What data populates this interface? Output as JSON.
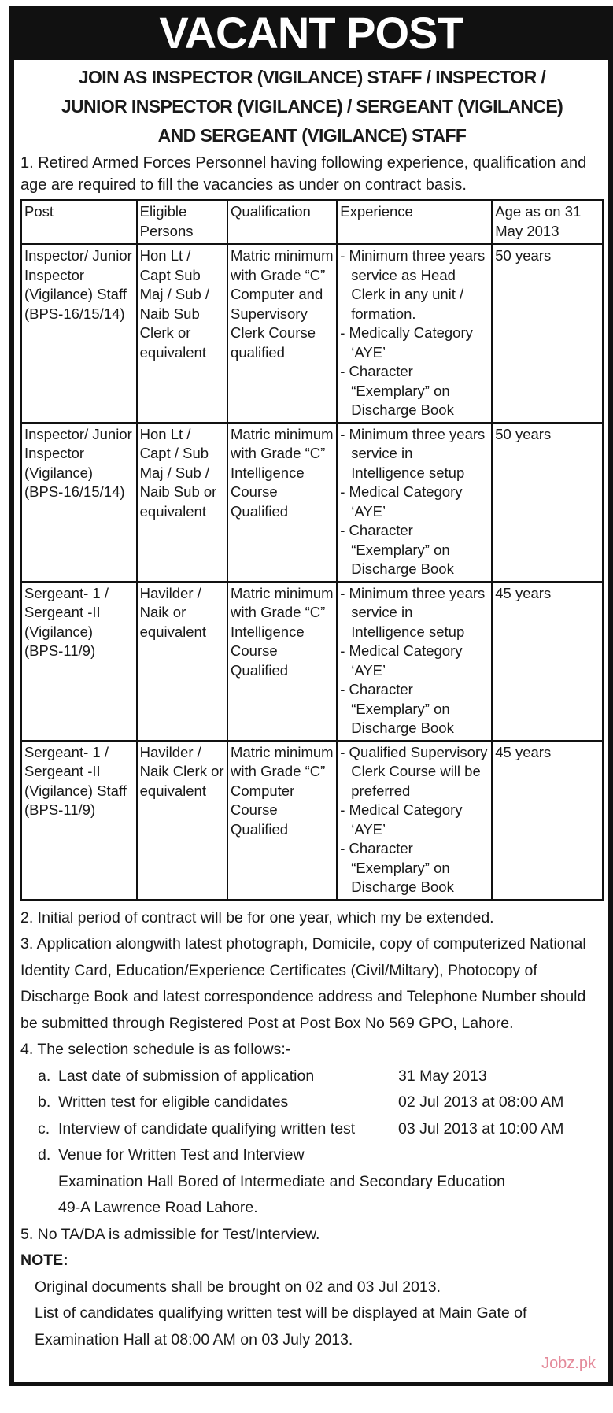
{
  "banner": "VACANT POST",
  "titles": [
    "JOIN AS INSPECTOR (VIGILANCE) STAFF / INSPECTOR /",
    "JUNIOR INSPECTOR (VIGILANCE) / SERGEANT (VIGILANCE)",
    "AND SERGEANT (VIGILANCE) STAFF"
  ],
  "para1": "1. Retired Armed Forces Personnel having following experience, qualification and age are required to fill the vacancies as under on contract basis.",
  "table": {
    "headers": [
      "Post",
      "Eligible Persons",
      "Qualification",
      "Experience",
      "Age as on 31 May 2013"
    ],
    "rows": [
      {
        "post": "Inspector/ Junior Inspector (Vigilance) Staff (BPS-16/15/14)",
        "eligible": "Hon Lt / Capt Sub Maj / Sub / Naib Sub Clerk or equivalent",
        "qualification": "Matric minimum with Grade “C” Computer and Supervisory Clerk Course qualified",
        "experience": [
          "- Minimum three years service as Head Clerk in any unit / formation.",
          "- Medically Category ‘AYE’",
          "- Character “Exemplary” on Discharge Book"
        ],
        "age": "50 years"
      },
      {
        "post": "Inspector/ Junior Inspector (Vigilance) (BPS-16/15/14)",
        "eligible": "Hon Lt / Capt / Sub Maj / Sub / Naib Sub or equivalent",
        "qualification": "Matric minimum with Grade “C” Intelligence Course Qualified",
        "experience": [
          "- Minimum three years service in Intelligence setup",
          "- Medical Category ‘AYE’",
          "- Character “Exemplary” on Discharge Book"
        ],
        "age": "50 years"
      },
      {
        "post": "Sergeant- 1 / Sergeant -II (Vigilance) (BPS-11/9)",
        "eligible": "Havilder / Naik or equivalent",
        "qualification": "Matric minimum with Grade “C” Intelligence Course Qualified",
        "experience": [
          "- Minimum three years service in Intelligence setup",
          "- Medical Category ‘AYE’",
          "- Character “Exemplary” on Discharge Book"
        ],
        "age": "45 years"
      },
      {
        "post": "Sergeant- 1 / Sergeant -II (Vigilance) Staff (BPS-11/9)",
        "eligible": "Havilder / Naik Clerk or equivalent",
        "qualification": "Matric minimum with Grade “C” Computer Course Qualified",
        "experience": [
          "- Qualified Supervisory Clerk Course will be preferred",
          "- Medical Category ‘AYE’",
          "- Character “Exemplary” on Discharge Book"
        ],
        "age": "45 years"
      }
    ]
  },
  "para2": "2. Initial period of contract will be for one year, which my be extended.",
  "para3": "3. Application alongwith latest photograph, Domicile, copy of computerized National Identity Card, Education/Experience Certificates (Civil/Miltary), Photocopy of Discharge Book and latest correspondence address and Telephone Number should be submitted through Registered Post at Post Box No 569 GPO, Lahore.",
  "para4": "4. The selection schedule is as follows:-",
  "schedule": [
    {
      "letter": "a.",
      "text": "Last date of submission of application",
      "date": "31 May 2013"
    },
    {
      "letter": "b.",
      "text": "Written test for eligible candidates",
      "date": "02 Jul 2013 at 08:00 AM"
    },
    {
      "letter": "c.",
      "text": "Interview of candidate qualifying written test",
      "date": "03 Jul 2013 at 10:00 AM"
    },
    {
      "letter": "d.",
      "text": "Venue for Written Test and Interview",
      "date": ""
    }
  ],
  "venue": [
    "Examination Hall Bored of Intermediate and Secondary Education",
    "49-A Lawrence Road Lahore."
  ],
  "para5": "5. No TA/DA is admissible for Test/Interview.",
  "note": {
    "title": "NOTE:",
    "lines": [
      "Original documents shall be brought on 02 and 03 Jul 2013.",
      "List of candidates qualifying written test will be displayed at Main Gate of",
      "Examination Hall at 08:00 AM on 03 July 2013."
    ]
  },
  "watermark": "Jobz.pk",
  "colors": {
    "watermark": "#e48a9a",
    "border": "#111111"
  }
}
